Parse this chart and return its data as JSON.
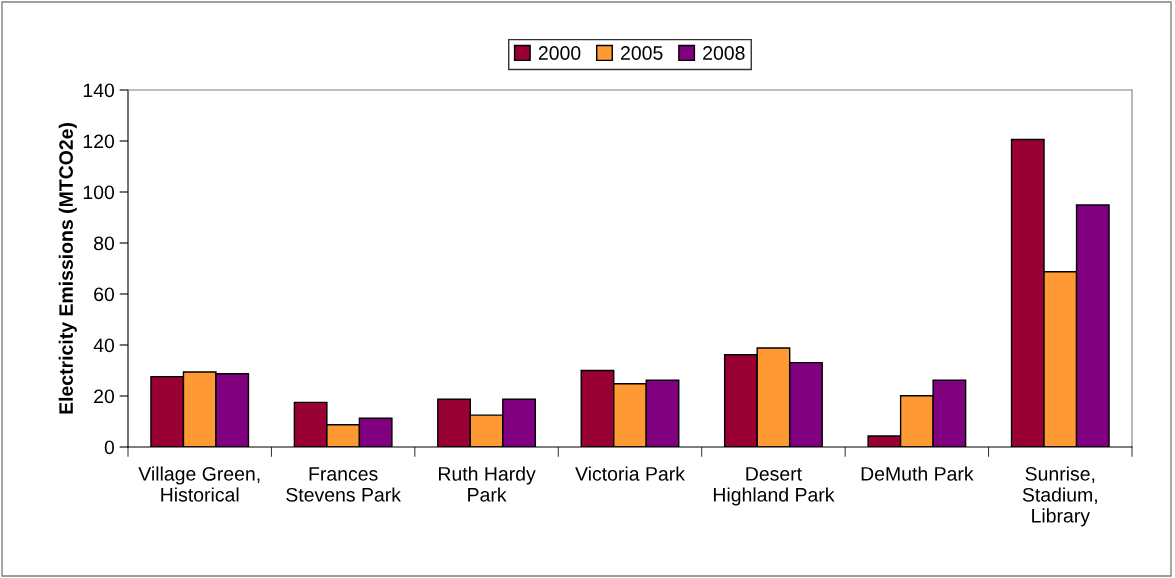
{
  "chart_data": {
    "type": "bar",
    "ylabel": "Electricity Emissions (MTCO2e)",
    "categories": [
      "Village Green, Historical",
      "Frances Stevens Park",
      "Ruth Hardy Park",
      "Victoria Park",
      "Desert Highland Park",
      "DeMuth Park",
      "Sunrise, Stadium, Library"
    ],
    "series": [
      {
        "name": "2000",
        "color": "#990033",
        "values": [
          27.6,
          17.5,
          18.7,
          30.0,
          36.2,
          4.3,
          120.6
        ]
      },
      {
        "name": "2005",
        "color": "#ff9933",
        "values": [
          29.4,
          8.7,
          12.5,
          24.8,
          38.8,
          20.1,
          68.7
        ]
      },
      {
        "name": "2008",
        "color": "#800080",
        "values": [
          28.7,
          11.3,
          18.7,
          26.2,
          33.1,
          26.2,
          94.9
        ]
      }
    ],
    "ylim": [
      0,
      140
    ],
    "yticks": [
      0,
      20,
      40,
      60,
      80,
      100,
      120,
      140
    ],
    "grid": false,
    "legend": "top"
  }
}
